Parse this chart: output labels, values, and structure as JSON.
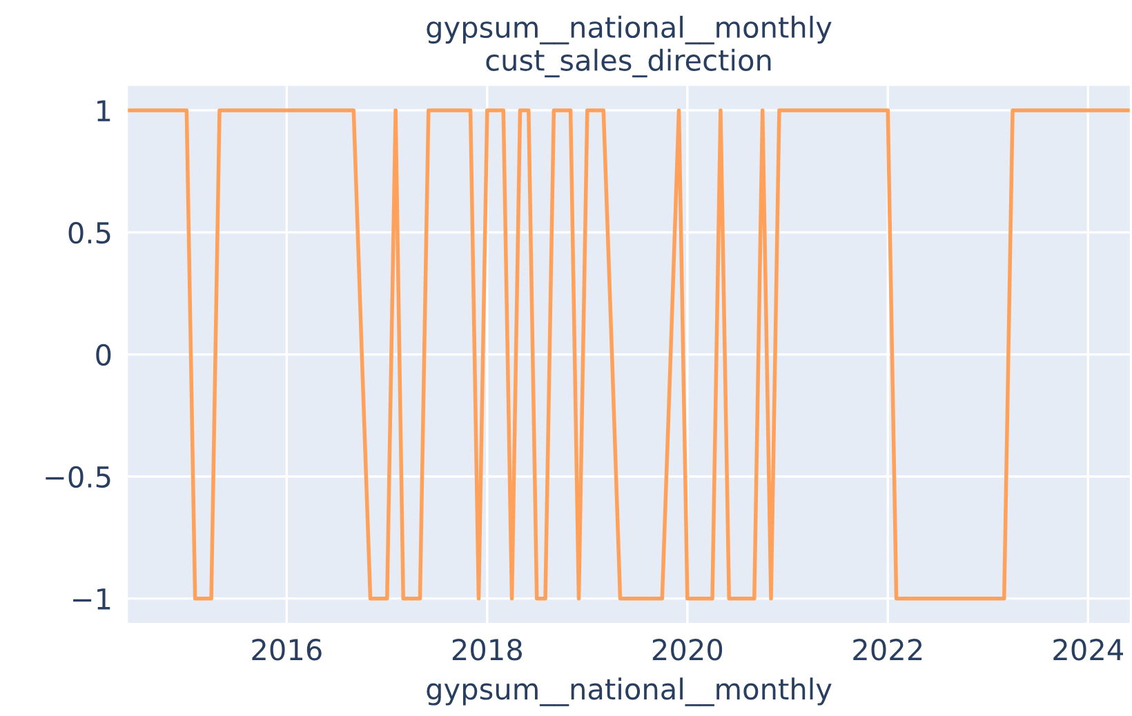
{
  "chart_data": {
    "type": "line",
    "title": "gypsum__national__monthly\ncust_sales_direction",
    "xlabel": "gypsum__national__monthly",
    "series": [
      {
        "color": "#ffa15a",
        "x": [
          "2014-06",
          "2015-01",
          "2015-02",
          "2015-04",
          "2015-05",
          "2016-09",
          "2016-10",
          "2016-11",
          "2017-01",
          "2017-02",
          "2017-03",
          "2017-05",
          "2017-06",
          "2017-11",
          "2017-12",
          "2018-01",
          "2018-03",
          "2018-04",
          "2018-05",
          "2018-06",
          "2018-07",
          "2018-08",
          "2018-09",
          "2018-11",
          "2018-12",
          "2019-01",
          "2019-03",
          "2019-04",
          "2019-05",
          "2019-10",
          "2019-11",
          "2019-12",
          "2020-01",
          "2020-04",
          "2020-05",
          "2020-06",
          "2020-09",
          "2020-10",
          "2020-11",
          "2020-12",
          "2022-01",
          "2022-02",
          "2023-03",
          "2023-04",
          "2024-06"
        ],
        "values": [
          1,
          1,
          -1,
          -1,
          1,
          1,
          0,
          -1,
          -1,
          1,
          -1,
          -1,
          1,
          1,
          -1,
          1,
          1,
          -1,
          1,
          1,
          -1,
          -1,
          1,
          1,
          -1,
          1,
          1,
          0,
          -1,
          -1,
          0,
          1,
          -1,
          -1,
          1,
          -1,
          -1,
          1,
          -1,
          1,
          1,
          -1,
          -1,
          1,
          1
        ]
      }
    ],
    "xlim": [
      "2014-06",
      "2024-06"
    ],
    "xticks": [
      {
        "value": "2016",
        "label": "2016"
      },
      {
        "value": "2018",
        "label": "2018"
      },
      {
        "value": "2020",
        "label": "2020"
      },
      {
        "value": "2022",
        "label": "2022"
      },
      {
        "value": "2024",
        "label": "2024"
      }
    ],
    "ylim": [
      -1.1,
      1.1
    ],
    "yticks": [
      {
        "value": -1,
        "label": "−1"
      },
      {
        "value": -0.5,
        "label": "−0.5"
      },
      0,
      0.5,
      1
    ],
    "grid": true,
    "line_style": "solid",
    "marker": "none"
  }
}
